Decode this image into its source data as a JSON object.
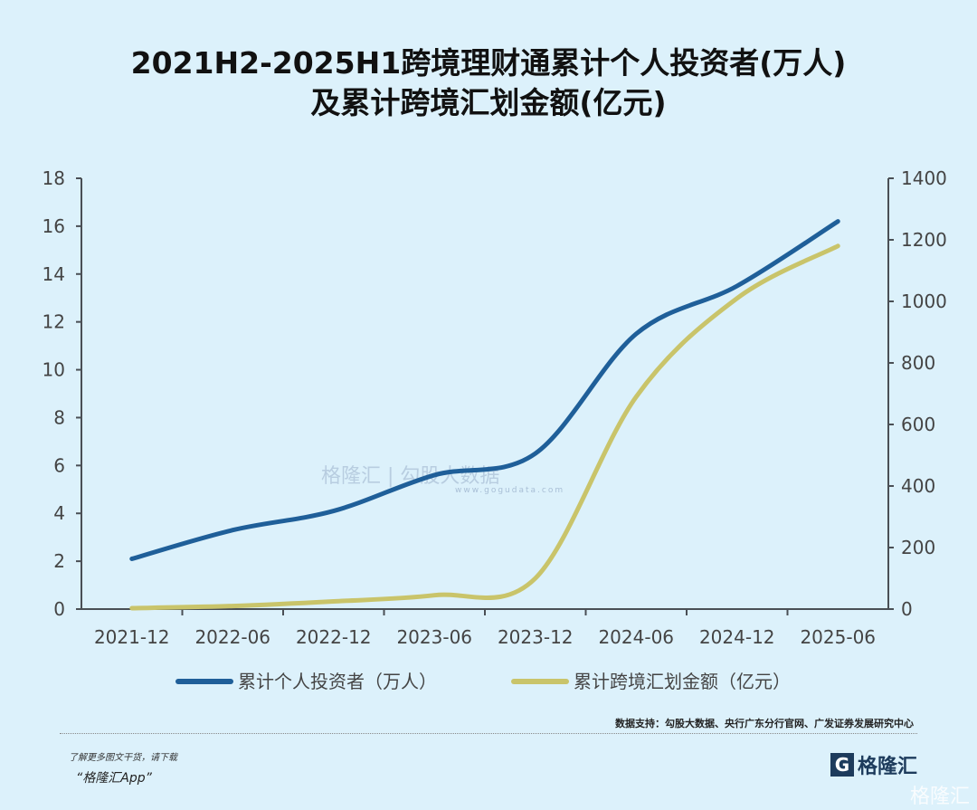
{
  "chart_data": {
    "type": "line",
    "title_line1": "2021H2-2025H1跨境理财通累计个人投资者(万人)",
    "title_line2": "及累计跨境汇划金额(亿元)",
    "categories": [
      "2021-12",
      "2022-06",
      "2022-12",
      "2023-06",
      "2023-12",
      "2024-06",
      "2024-12",
      "2025-06"
    ],
    "y_left": {
      "range": [
        0,
        18
      ],
      "ticks": [
        "0",
        "2",
        "4",
        "6",
        "8",
        "10",
        "12",
        "14",
        "16",
        "18"
      ]
    },
    "y_right": {
      "range": [
        0,
        1400
      ],
      "ticks": [
        "0",
        "200",
        "400",
        "600",
        "800",
        "1000",
        "1200",
        "1400"
      ]
    },
    "series": [
      {
        "name": "累计个人投资者（万人）",
        "axis": "left",
        "color": "#1f5f99",
        "values": [
          2.1,
          3.3,
          4.1,
          5.6,
          6.5,
          11.5,
          13.5,
          16.2
        ]
      },
      {
        "name": "累计跨境汇划金额（亿元）",
        "axis": "right",
        "color": "#c9c46a",
        "values": [
          3,
          10,
          25,
          45,
          100,
          690,
          1010,
          1180
        ]
      }
    ],
    "grid": false,
    "legend": "bottom"
  },
  "footer": {
    "source": "数据支持：勾股大数据、央行广东分行官网、广发证券发展研究中心",
    "note": "了解更多图文干货，请下载",
    "app": "“格隆汇App”",
    "logo": "格隆汇",
    "watermark": "格隆汇",
    "center_watermark": "格隆汇 | 勾股大数据",
    "center_watermark_url": "www.gogudata.com"
  }
}
